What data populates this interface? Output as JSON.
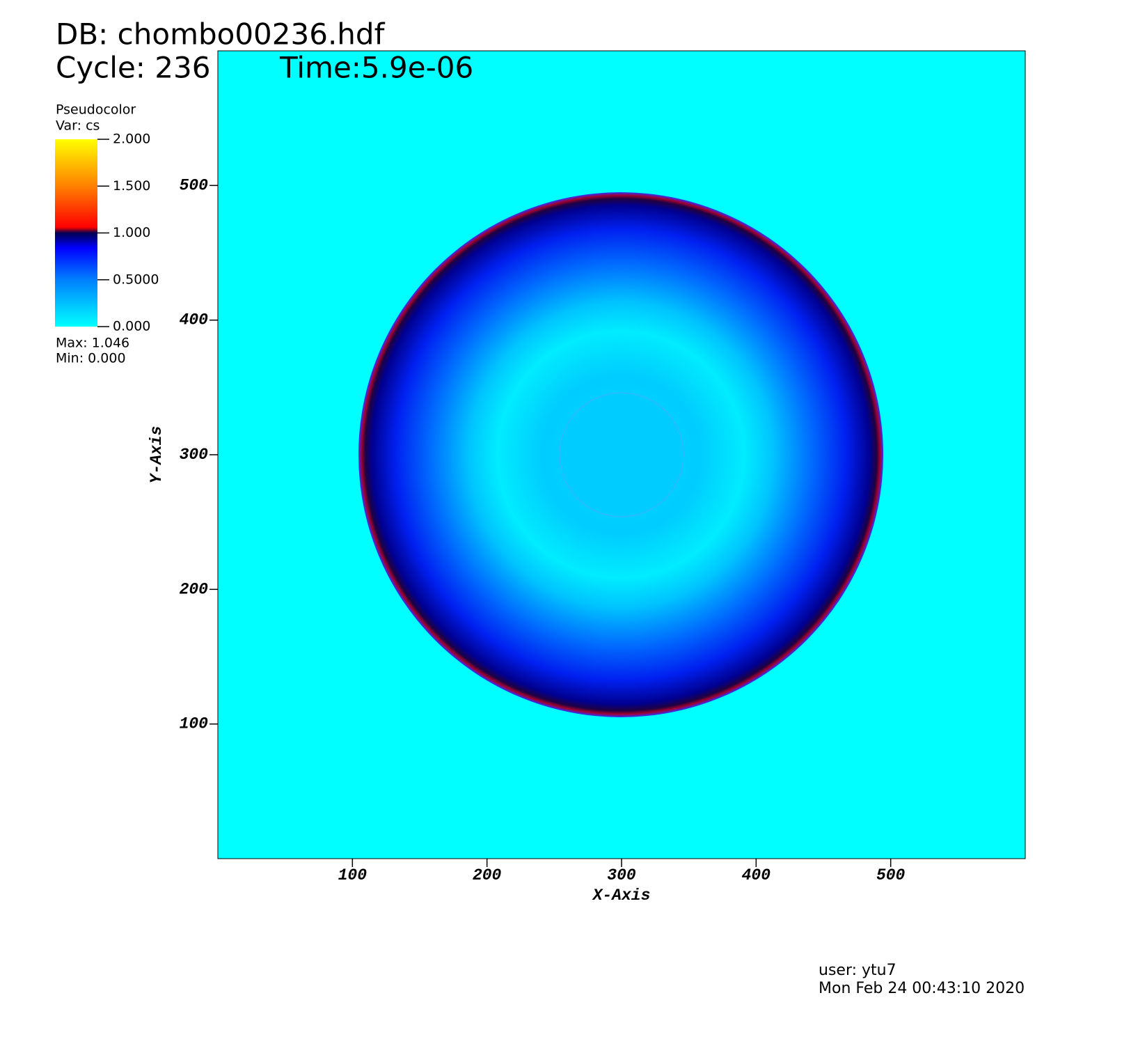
{
  "chart_data": {
    "type": "pseudocolor",
    "db_label": "DB: chombo00236.hdf",
    "cycle_label": "Cycle: 236",
    "time_label": "Time:5.9e-06",
    "xlabel": "X-Axis",
    "ylabel": "Y-Axis",
    "xlim": [
      0,
      600
    ],
    "ylim": [
      0,
      600
    ],
    "xticks": [
      100,
      200,
      300,
      400,
      500
    ],
    "yticks": [
      100,
      200,
      300,
      400,
      500
    ],
    "legend": {
      "title": "Pseudocolor",
      "var": "Var: cs",
      "max_label": "Max:  1.046",
      "min_label": "Min:  0.000",
      "lim": [
        0,
        2
      ],
      "ticks": [
        {
          "value": 0,
          "label": "0.000"
        },
        {
          "value": 0.5,
          "label": "0.5000"
        },
        {
          "value": 1,
          "label": "1.000"
        },
        {
          "value": 1.5,
          "label": "1.500"
        },
        {
          "value": 2,
          "label": "2.000"
        }
      ]
    },
    "user_label": "user: ytu7",
    "date_label": "Mon Feb 24 00:43:10 2020"
  }
}
